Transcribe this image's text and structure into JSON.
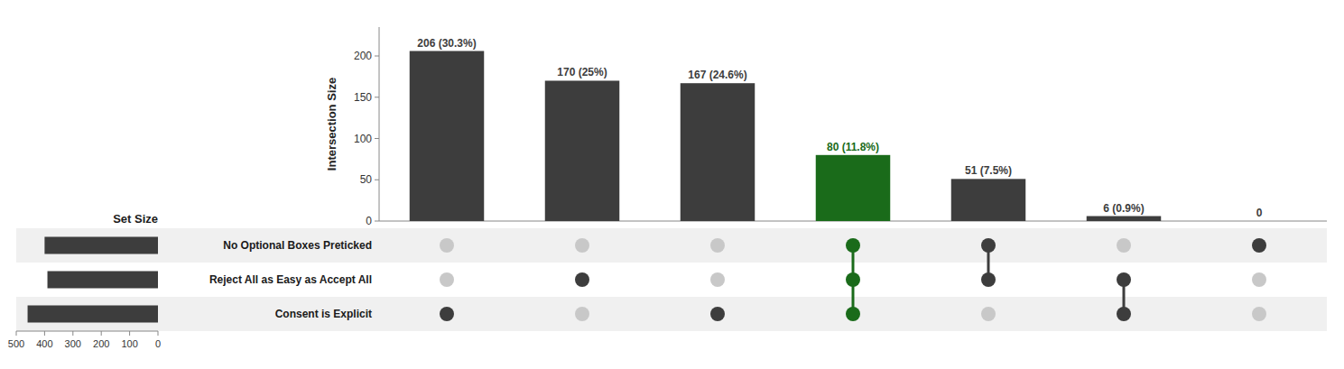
{
  "chart_data": {
    "type": "upset",
    "ylabel": "Intersection Size",
    "values": [
      206,
      170,
      167,
      80,
      51,
      6,
      0
    ],
    "value_labels": [
      "206 (30.3%)",
      "170 (25%)",
      "167 (24.6%)",
      "80 (11.8%)",
      "51 (7.5%)",
      "6 (0.9%)",
      "0"
    ],
    "data_labels": true,
    "colors": [
      "#3d3d3d",
      "#3d3d3d",
      "#3d3d3d",
      "#1a6b1a",
      "#3d3d3d",
      "#3d3d3d",
      "#3d3d3d"
    ],
    "ylim": [
      0,
      235
    ],
    "yticks": [
      0,
      50,
      100,
      150,
      200
    ],
    "sets": [
      "No Optional Boxes Preticked",
      "Reject All as Easy as Accept All",
      "Consent is Explicit"
    ],
    "set_sizes": [
      400,
      390,
      460
    ],
    "set_color": "#3d3d3d",
    "matrix": [
      [
        0,
        0,
        0,
        1,
        1,
        0,
        1
      ],
      [
        0,
        1,
        0,
        1,
        1,
        1,
        0
      ],
      [
        1,
        0,
        1,
        1,
        0,
        1,
        0
      ]
    ],
    "inactive_color": "#c8c8c8",
    "xlabel": "Set Size",
    "xlim": [
      500,
      0
    ],
    "xticks": [
      0,
      100,
      200,
      300,
      400,
      500
    ],
    "grid": false
  }
}
